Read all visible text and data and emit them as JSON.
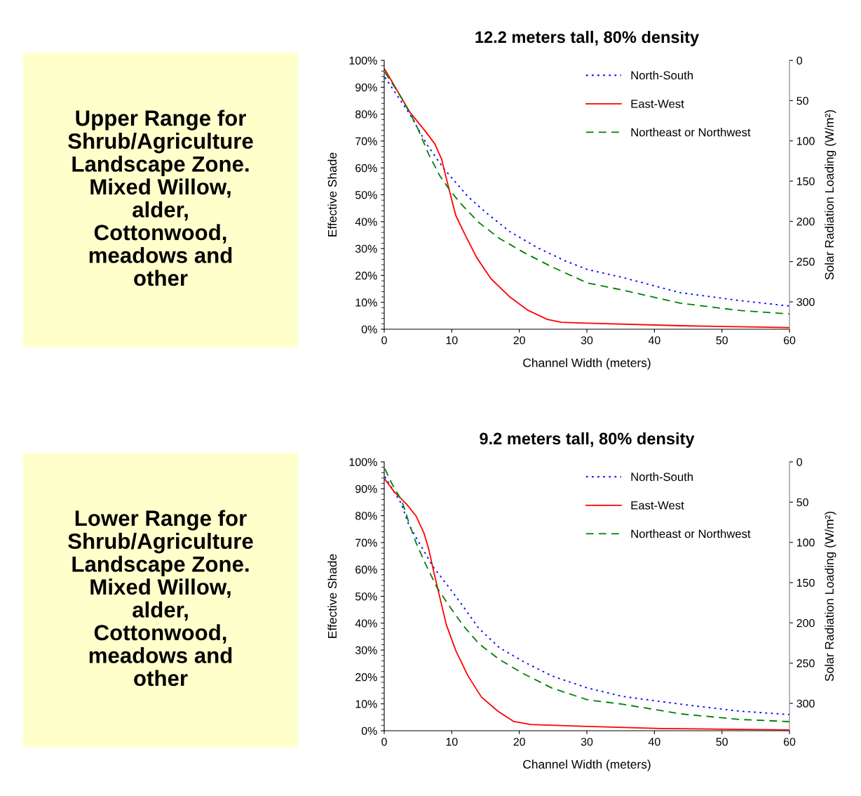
{
  "chart_data": [
    {
      "type": "other",
      "annotations": [
        "Upper Range for\nShrub/Agriculture\nLandscape Zone.\nMixed Willow,\nalder,\nCottonwood,\nmeadows and\nother"
      ]
    },
    {
      "type": "line",
      "title": "12.2 meters tall, 80% density",
      "xlabel": "Channel Width (meters)",
      "ylabel": "Effective Shade",
      "y2label": "Solar Radiation Loading (W/m²)",
      "xlim": [
        0,
        60
      ],
      "xticks": [
        0,
        10,
        20,
        30,
        40,
        50,
        60
      ],
      "ylim": [
        0,
        100
      ],
      "yticks": [
        {
          "value": 0,
          "label": "0%"
        },
        {
          "value": 10,
          "label": "10%"
        },
        {
          "value": 20,
          "label": "20%"
        },
        {
          "value": 30,
          "label": "30%"
        },
        {
          "value": 40,
          "label": "40%"
        },
        {
          "value": 50,
          "label": "50%"
        },
        {
          "value": 60,
          "label": "60%"
        },
        {
          "value": 70,
          "label": "70%"
        },
        {
          "value": 80,
          "label": "80%"
        },
        {
          "value": 90,
          "label": "90%"
        },
        {
          "value": 100,
          "label": "100%"
        }
      ],
      "y2lim": [
        334,
        0
      ],
      "y2ticks": [
        0,
        50,
        100,
        150,
        200,
        250,
        300
      ],
      "grid": false,
      "legend": "top right",
      "marker": "none",
      "series": [
        {
          "name": "North-South",
          "color": "#0000ff",
          "line_style": "dotted",
          "x": [
            0.1,
            3.8,
            6.4,
            8.8,
            12.4,
            15.1,
            18.6,
            22.7,
            26.9,
            30.1,
            35.2,
            43.8,
            52.5,
            60
          ],
          "values": [
            93.7,
            79.9,
            68.4,
            59.8,
            49.3,
            43.3,
            36.3,
            30.3,
            25.3,
            22.2,
            19.3,
            13.6,
            10.7,
            8.6
          ]
        },
        {
          "name": "East-West",
          "color": "#ff0000",
          "line_style": "solid",
          "x": [
            0.1,
            3.8,
            6.1,
            7.5,
            8.5,
            9.6,
            10.6,
            11.9,
            13.7,
            15.8,
            18.6,
            21.3,
            24.1,
            26.2,
            29.1,
            43.8,
            60
          ],
          "values": [
            96.6,
            80.7,
            73.6,
            68.9,
            63.2,
            52,
            42.3,
            35.5,
            26.6,
            18.8,
            12,
            7,
            3.7,
            2.6,
            2.3,
            1.3,
            0.6
          ]
        },
        {
          "name": "Northeast or Northwest",
          "color": "#008000",
          "line_style": "dashed",
          "x": [
            0.1,
            2.6,
            4.7,
            6.6,
            8.2,
            9.8,
            11.6,
            14,
            17.1,
            20.7,
            24.8,
            30.1,
            35.2,
            43.8,
            52.5,
            60
          ],
          "values": [
            95.6,
            85.9,
            76.2,
            65,
            57.2,
            51.4,
            46,
            39.7,
            33.7,
            28.5,
            23.2,
            17.2,
            14.6,
            9.7,
            7,
            5.7
          ]
        }
      ]
    },
    {
      "type": "other",
      "annotations": [
        "Lower Range for\nShrub/Agriculture\nLandscape Zone.\nMixed Willow,\nalder,\nCottonwood,\nmeadows and\nother"
      ]
    },
    {
      "type": "line",
      "title": "9.2 meters tall, 80% density",
      "xlabel": "Channel Width (meters)",
      "ylabel": "Effective Shade",
      "y2label": "Solar Radiation Loading (W/m²)",
      "xlim": [
        0,
        60
      ],
      "xticks": [
        0,
        10,
        20,
        30,
        40,
        50,
        60
      ],
      "ylim": [
        0,
        100
      ],
      "yticks": [
        {
          "value": 0,
          "label": "0%"
        },
        {
          "value": 10,
          "label": "10%"
        },
        {
          "value": 20,
          "label": "20%"
        },
        {
          "value": 30,
          "label": "30%"
        },
        {
          "value": 40,
          "label": "40%"
        },
        {
          "value": 50,
          "label": "50%"
        },
        {
          "value": 60,
          "label": "60%"
        },
        {
          "value": 70,
          "label": "70%"
        },
        {
          "value": 80,
          "label": "80%"
        },
        {
          "value": 90,
          "label": "90%"
        },
        {
          "value": 100,
          "label": "100%"
        }
      ],
      "y2lim": [
        334,
        0
      ],
      "y2ticks": [
        0,
        50,
        100,
        150,
        200,
        250,
        300
      ],
      "grid": false,
      "legend": "top right",
      "marker": "none",
      "series": [
        {
          "name": "North-South",
          "color": "#0000ff",
          "line_style": "dotted",
          "x": [
            0.1,
            2.5,
            3.6,
            5.4,
            7.2,
            9.6,
            11.6,
            14,
            17.1,
            20.7,
            24.8,
            30.1,
            35.2,
            43.8,
            52.5,
            60
          ],
          "values": [
            94.5,
            84.6,
            76.8,
            68.9,
            61.1,
            53.3,
            46.5,
            38.1,
            30.8,
            25.6,
            20.4,
            15.9,
            12.8,
            9.9,
            7.3,
            6
          ]
        },
        {
          "name": "East-West",
          "color": "#ff0000",
          "line_style": "solid",
          "x": [
            0.1,
            1.5,
            3.3,
            4.7,
            5.9,
            6.6,
            7.3,
            8.2,
            9.2,
            10.6,
            12.4,
            14.4,
            16.8,
            19.2,
            21.7,
            30.1,
            41,
            60
          ],
          "values": [
            93.5,
            88.8,
            84.3,
            79.9,
            73.4,
            67.4,
            59.5,
            49.9,
            39.4,
            29.8,
            20.4,
            12.5,
            7.3,
            3.4,
            2.3,
            1.6,
            0.8,
            0.3
          ]
        },
        {
          "name": "Northeast or Northwest",
          "color": "#008000",
          "line_style": "dashed",
          "x": [
            0.1,
            1.2,
            2.6,
            3.6,
            4.7,
            6.1,
            7.8,
            9.6,
            11.6,
            14,
            17.1,
            20.7,
            24.8,
            30.1,
            35.2,
            43.8,
            52.5,
            60
          ],
          "values": [
            97.4,
            91.6,
            85.6,
            77.8,
            70,
            62.1,
            53.3,
            46.5,
            39.4,
            32.4,
            26.4,
            21.1,
            15.9,
            11.5,
            9.9,
            6.3,
            4.2,
            3.4
          ]
        }
      ]
    }
  ]
}
